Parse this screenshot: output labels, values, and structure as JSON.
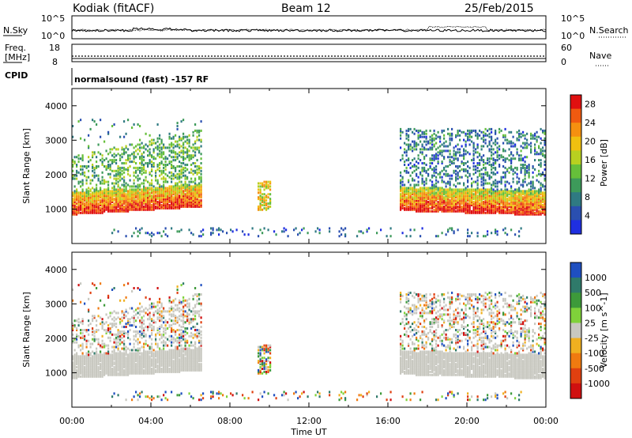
{
  "header": {
    "station": "Kodiak (fitACF)",
    "beam": "Beam 12",
    "date": "25/Feb/2015"
  },
  "top_panel": {
    "left_label": "N.Sky",
    "right_label": "N.Search",
    "left_ticks": [
      "10^5",
      "10^0"
    ],
    "right_ticks": [
      "10^5",
      "10^0"
    ]
  },
  "freq_panel": {
    "left_label_1": "Freq.",
    "left_label_2": "[MHz]",
    "right_label": "Nave",
    "left_ticks": [
      "18",
      "8"
    ],
    "right_ticks": [
      "60",
      "0"
    ]
  },
  "cpid": {
    "label": "CPID",
    "text": "normalsound (fast) -157 RF"
  },
  "colors": {
    "power_scale": [
      "#1f2fe0",
      "#2a4fb0",
      "#2f7a82",
      "#3d9a5a",
      "#66bf3a",
      "#b8d020",
      "#f0c010",
      "#f59010",
      "#f05a10",
      "#e01010"
    ],
    "velocity_scale": [
      "#1f4fc0",
      "#2f7a6a",
      "#3d9a3a",
      "#7fd23a",
      "#c8c8c0",
      "#f0b020",
      "#f07a10",
      "#e04010",
      "#d01010"
    ],
    "ground_scatter": "#c8c8c0"
  },
  "chart_data": [
    {
      "type": "heatmap",
      "panel": "power",
      "xlabel": "Time UT",
      "ylabel": "Slant Range [km]",
      "xlim": [
        0,
        24
      ],
      "ylim": [
        0,
        4500
      ],
      "x_tick_labels": [
        "00:00",
        "04:00",
        "08:00",
        "12:00",
        "16:00",
        "20:00",
        "00:00"
      ],
      "y_tick_labels": [
        "1000",
        "2000",
        "3000",
        "4000"
      ],
      "y_ticks": [
        1000,
        2000,
        3000,
        4000
      ],
      "colorbar": {
        "label": "Power [dB]",
        "range": [
          0,
          30
        ],
        "tick_labels": [
          "4",
          "8",
          "12",
          "16",
          "20",
          "24",
          "28"
        ]
      }
    },
    {
      "type": "heatmap",
      "panel": "velocity",
      "xlabel": "Time UT",
      "ylabel": "Slant Range [km]",
      "xlim": [
        0,
        24
      ],
      "ylim": [
        0,
        4500
      ],
      "x_tick_labels": [
        "00:00",
        "04:00",
        "08:00",
        "12:00",
        "16:00",
        "20:00",
        "00:00"
      ],
      "y_tick_labels": [
        "1000",
        "2000",
        "3000",
        "4000"
      ],
      "y_ticks": [
        1000,
        2000,
        3000,
        4000
      ],
      "colorbar": {
        "label": "Velocity [m s^-1]",
        "tick_labels": [
          "1000",
          "500",
          "100",
          "25",
          "-25",
          "-100",
          "-500",
          "-1000"
        ]
      }
    }
  ]
}
